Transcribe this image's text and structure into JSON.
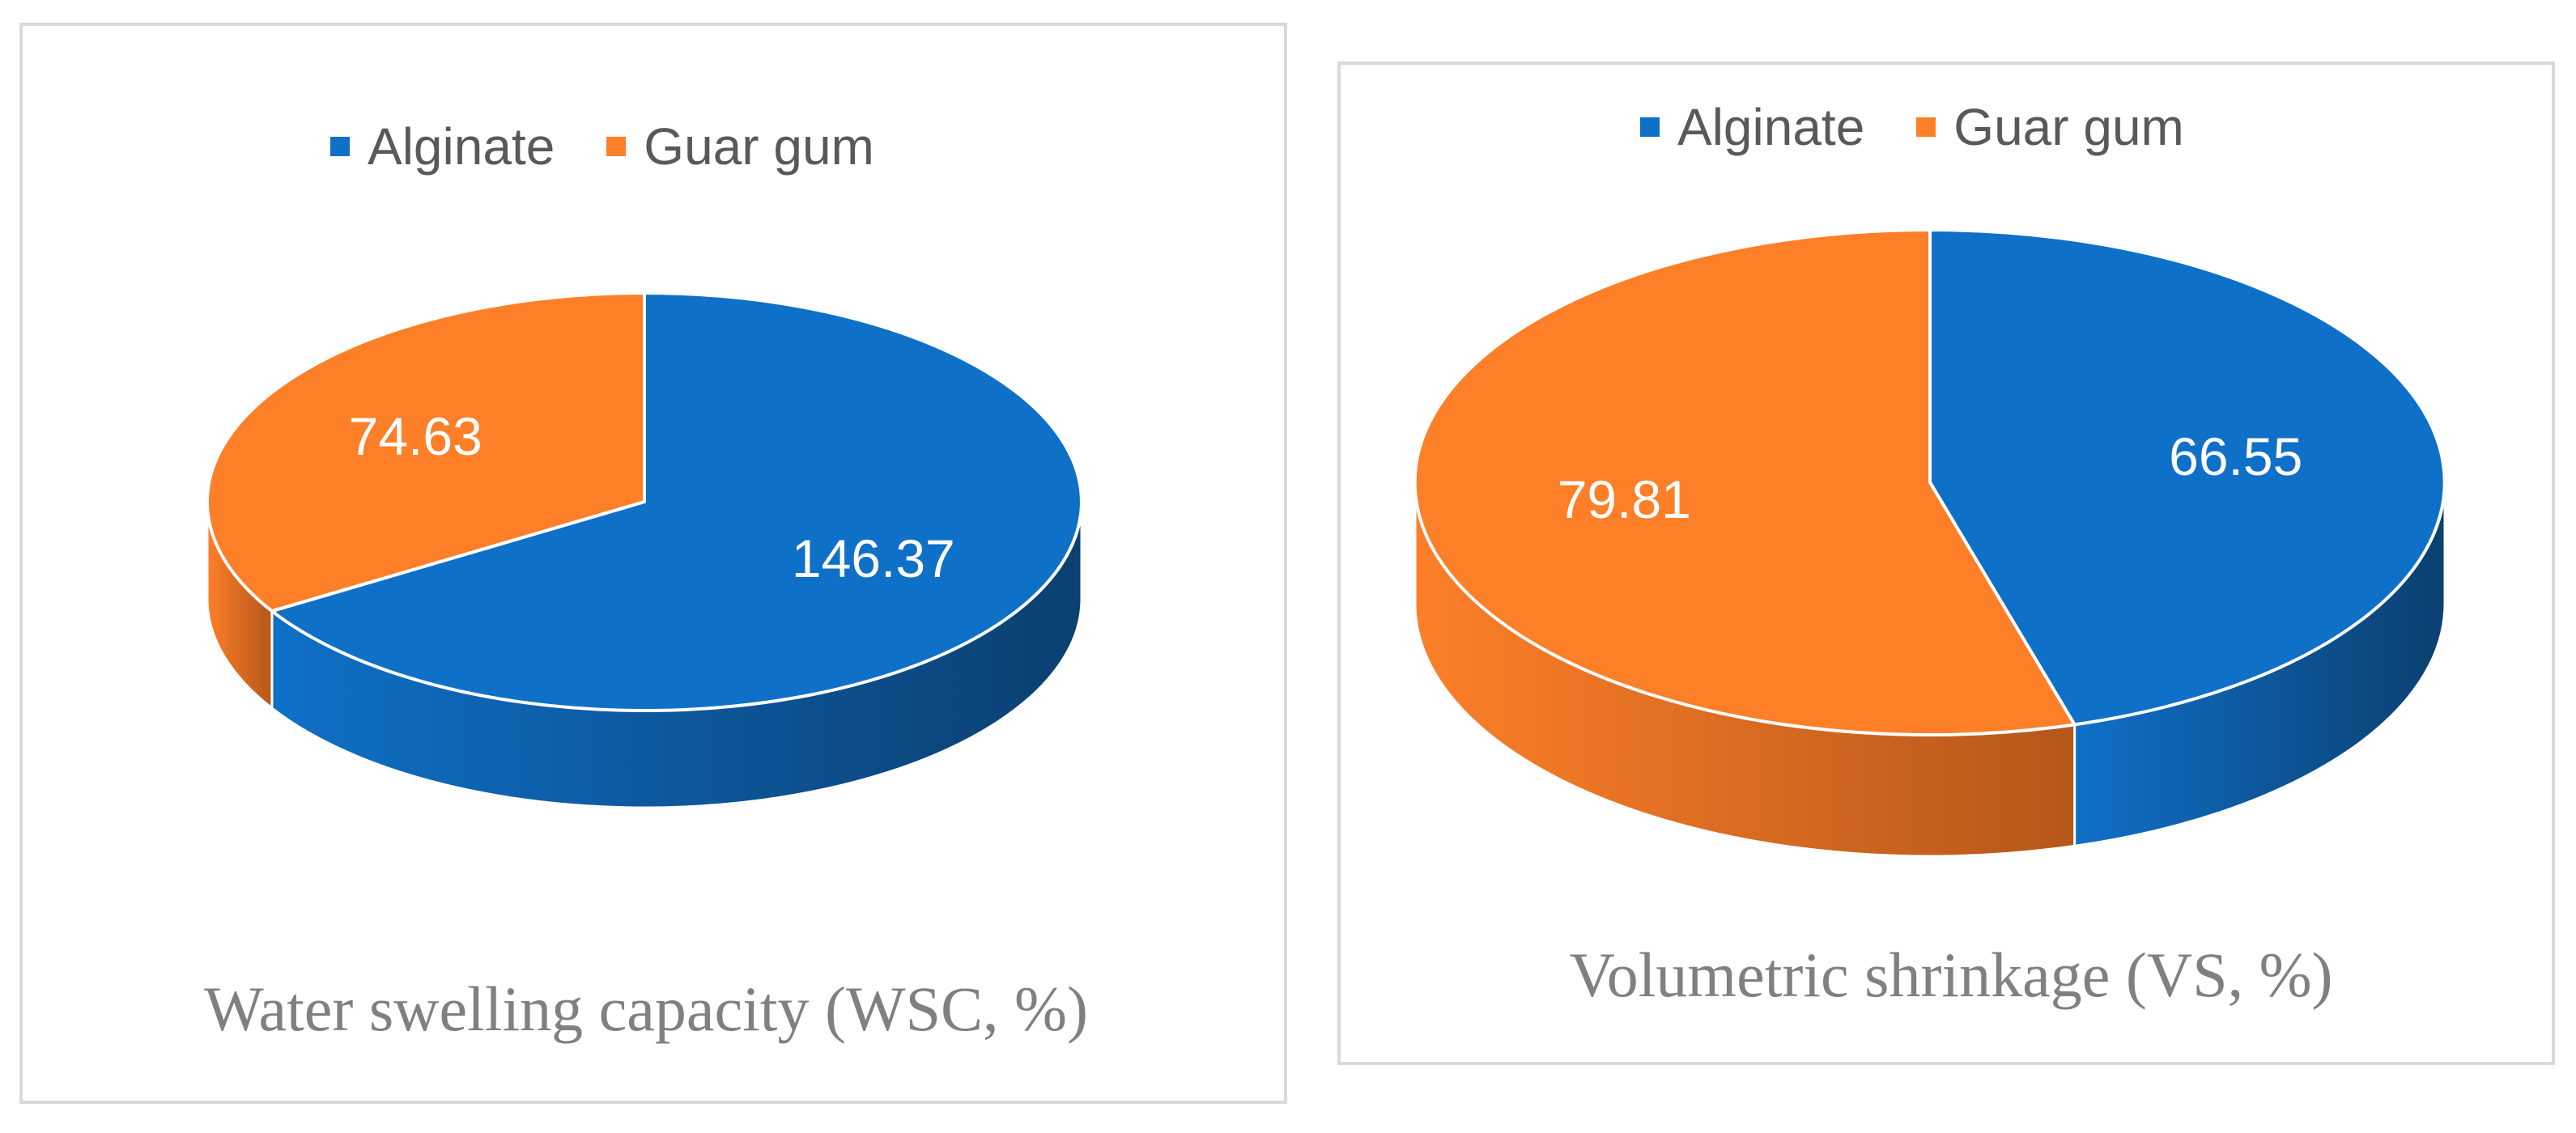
{
  "chart_data": [
    {
      "type": "pie",
      "title": "Water swelling capacity (WSC, %)",
      "categories": [
        "Alginate",
        "Guar gum"
      ],
      "values": [
        146.37,
        74.63
      ],
      "labels": [
        "146.37",
        "74.63"
      ],
      "colors": [
        "#0f70c8",
        "#fd7f28"
      ],
      "side_colors": [
        "#0b3f70",
        "#b5571a"
      ],
      "legend_position": "top",
      "three_d": true
    },
    {
      "type": "pie",
      "title": "Volumetric shrinkage (VS, %)",
      "categories": [
        "Alginate",
        "Guar gum"
      ],
      "values": [
        66.55,
        79.81
      ],
      "labels": [
        "66.55",
        "79.81"
      ],
      "colors": [
        "#0f70c8",
        "#fd7f28"
      ],
      "side_colors": [
        "#0b3f70",
        "#b5571a"
      ],
      "legend_position": "top",
      "three_d": true
    }
  ]
}
